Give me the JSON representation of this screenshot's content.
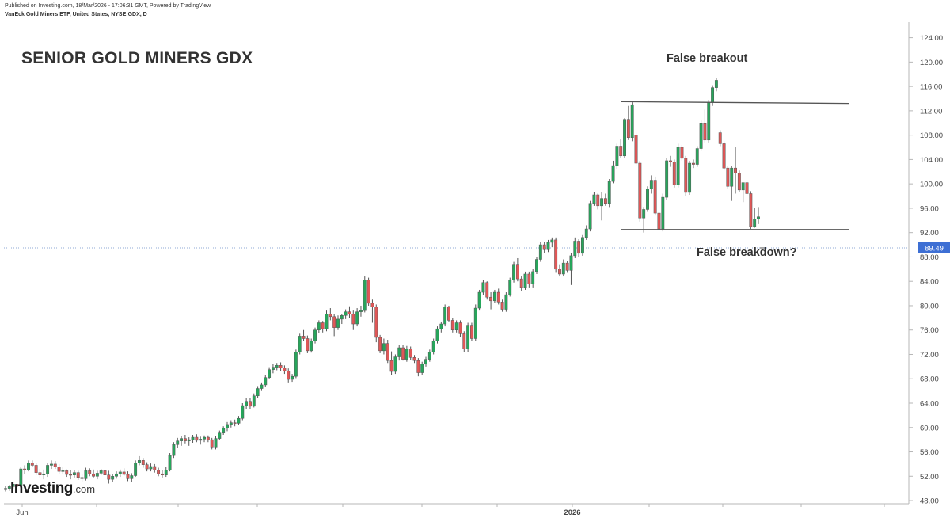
{
  "header": {
    "line1": "Published on Investing.com, 18/Mar/2026 - 17:06:31 GMT, Powered by TradingView",
    "line2": "VanEck Gold Miners ETF, United States, NYSE:GDX, D"
  },
  "annotations": {
    "false_breakout": "False breakout",
    "false_breakdown": "False breakdown?"
  },
  "logo": {
    "brand": "Investing",
    "suffix": ".com"
  },
  "colors": {
    "up": "#26a65b",
    "down": "#e05757",
    "line": "#555555",
    "price_tag": "#3d6fd4"
  },
  "chart_data": {
    "type": "candlestick",
    "title": "SENIOR GOLD MINERS GDX",
    "ylim": [
      46,
      125
    ],
    "y_ticks": [
      "48.00",
      "52.00",
      "56.00",
      "60.00",
      "64.00",
      "68.00",
      "72.00",
      "76.00",
      "80.00",
      "84.00",
      "88.00",
      "92.00",
      "96.00",
      "100.00",
      "104.00",
      "108.00",
      "112.00",
      "116.00",
      "120.00",
      "124.00"
    ],
    "x_labels": [
      "Jun",
      "2026"
    ],
    "last_price": "89.49",
    "grid": false,
    "levels": [
      {
        "name": "resistance",
        "value": 113.3
      },
      {
        "name": "support",
        "value": 92.5
      }
    ],
    "ohlc": [
      [
        49.8,
        50.4,
        49.5,
        50.0
      ],
      [
        50.0,
        50.6,
        49.6,
        50.3
      ],
      [
        50.3,
        51.0,
        50.0,
        50.7
      ],
      [
        50.7,
        51.2,
        50.2,
        50.5
      ],
      [
        50.5,
        53.6,
        50.3,
        53.2
      ],
      [
        53.2,
        53.8,
        52.4,
        53.0
      ],
      [
        53.0,
        54.6,
        52.8,
        54.2
      ],
      [
        54.2,
        54.6,
        53.5,
        53.8
      ],
      [
        53.8,
        54.2,
        52.2,
        52.6
      ],
      [
        52.6,
        53.2,
        51.8,
        52.2
      ],
      [
        52.2,
        53.1,
        51.5,
        52.4
      ],
      [
        52.4,
        54.2,
        51.9,
        53.8
      ],
      [
        53.8,
        54.6,
        53.2,
        54.0
      ],
      [
        54.0,
        54.5,
        53.2,
        53.5
      ],
      [
        53.5,
        54.0,
        52.4,
        52.8
      ],
      [
        52.8,
        53.6,
        52.3,
        52.9
      ],
      [
        52.9,
        53.1,
        51.9,
        52.3
      ],
      [
        52.3,
        53.0,
        51.5,
        52.2
      ],
      [
        52.2,
        53.0,
        51.8,
        52.6
      ],
      [
        52.6,
        52.9,
        51.4,
        51.8
      ],
      [
        51.8,
        52.4,
        51.0,
        51.6
      ],
      [
        51.6,
        53.4,
        51.3,
        52.9
      ],
      [
        52.9,
        53.3,
        52.0,
        52.4
      ],
      [
        52.4,
        53.1,
        51.8,
        52.0
      ],
      [
        52.0,
        52.9,
        51.5,
        52.5
      ],
      [
        52.5,
        53.2,
        52.2,
        52.9
      ],
      [
        52.9,
        53.1,
        51.8,
        52.2
      ],
      [
        52.2,
        52.9,
        50.8,
        51.5
      ],
      [
        51.5,
        52.4,
        51.0,
        52.0
      ],
      [
        52.0,
        52.8,
        51.6,
        52.4
      ],
      [
        52.4,
        53.1,
        51.9,
        52.7
      ],
      [
        52.7,
        53.3,
        52.1,
        52.3
      ],
      [
        52.3,
        52.8,
        51.2,
        51.6
      ],
      [
        51.6,
        52.5,
        51.1,
        52.1
      ],
      [
        52.1,
        54.6,
        51.9,
        54.2
      ],
      [
        54.2,
        55.3,
        53.8,
        54.6
      ],
      [
        54.6,
        55.0,
        53.4,
        53.9
      ],
      [
        53.9,
        54.3,
        52.8,
        53.2
      ],
      [
        53.2,
        54.1,
        52.8,
        53.6
      ],
      [
        53.6,
        54.0,
        52.6,
        53.0
      ],
      [
        53.0,
        53.4,
        52.0,
        52.4
      ],
      [
        52.4,
        53.0,
        51.8,
        52.2
      ],
      [
        52.2,
        53.5,
        51.9,
        53.0
      ],
      [
        53.0,
        55.8,
        52.8,
        55.4
      ],
      [
        55.4,
        57.6,
        55.0,
        57.2
      ],
      [
        57.2,
        58.3,
        56.6,
        57.8
      ],
      [
        57.8,
        58.6,
        57.0,
        58.2
      ],
      [
        58.2,
        58.8,
        57.4,
        57.8
      ],
      [
        57.8,
        58.4,
        57.0,
        58.0
      ],
      [
        58.0,
        58.8,
        57.5,
        58.4
      ],
      [
        58.4,
        58.9,
        57.6,
        57.9
      ],
      [
        57.9,
        58.5,
        57.2,
        58.1
      ],
      [
        58.1,
        58.7,
        57.6,
        58.4
      ],
      [
        58.4,
        58.7,
        57.6,
        58.0
      ],
      [
        58.0,
        58.3,
        56.4,
        56.8
      ],
      [
        56.8,
        58.6,
        56.4,
        58.2
      ],
      [
        58.2,
        59.5,
        57.9,
        59.1
      ],
      [
        59.1,
        60.2,
        58.8,
        59.9
      ],
      [
        59.9,
        60.9,
        59.4,
        60.5
      ],
      [
        60.5,
        61.2,
        60.0,
        60.8
      ],
      [
        60.8,
        61.3,
        60.2,
        60.7
      ],
      [
        60.7,
        61.9,
        60.4,
        61.5
      ],
      [
        61.5,
        64.0,
        61.2,
        63.6
      ],
      [
        63.6,
        64.8,
        63.0,
        64.3
      ],
      [
        64.3,
        64.8,
        63.0,
        63.5
      ],
      [
        63.5,
        65.6,
        63.3,
        65.2
      ],
      [
        65.2,
        66.8,
        64.9,
        66.4
      ],
      [
        66.4,
        67.4,
        66.0,
        67.0
      ],
      [
        67.0,
        68.6,
        66.6,
        68.2
      ],
      [
        68.2,
        69.9,
        67.9,
        69.5
      ],
      [
        69.5,
        70.4,
        68.9,
        69.9
      ],
      [
        69.9,
        70.6,
        69.4,
        70.2
      ],
      [
        70.2,
        70.7,
        69.3,
        69.8
      ],
      [
        69.8,
        70.2,
        68.8,
        69.3
      ],
      [
        69.3,
        69.7,
        67.4,
        67.9
      ],
      [
        67.9,
        68.8,
        67.5,
        68.4
      ],
      [
        68.4,
        72.8,
        68.1,
        72.4
      ],
      [
        72.4,
        75.4,
        72.0,
        75.0
      ],
      [
        75.0,
        76.0,
        74.2,
        74.6
      ],
      [
        74.6,
        75.1,
        72.2,
        72.6
      ],
      [
        72.6,
        74.6,
        72.3,
        74.2
      ],
      [
        74.2,
        76.4,
        73.8,
        76.0
      ],
      [
        76.0,
        77.6,
        75.5,
        77.2
      ],
      [
        77.2,
        77.5,
        75.6,
        76.2
      ],
      [
        76.2,
        79.2,
        75.8,
        78.6
      ],
      [
        78.6,
        79.6,
        77.6,
        78.2
      ],
      [
        78.2,
        78.6,
        75.0,
        76.4
      ],
      [
        76.4,
        78.4,
        76.0,
        77.8
      ],
      [
        77.8,
        78.6,
        77.0,
        78.4
      ],
      [
        78.4,
        79.4,
        77.8,
        79.0
      ],
      [
        79.0,
        79.9,
        78.0,
        78.6
      ],
      [
        78.6,
        79.2,
        76.0,
        77.0
      ],
      [
        77.0,
        79.6,
        76.6,
        79.0
      ],
      [
        79.0,
        80.0,
        78.2,
        79.2
      ],
      [
        79.2,
        84.8,
        78.9,
        84.2
      ],
      [
        84.2,
        84.6,
        80.0,
        80.4
      ],
      [
        80.4,
        81.0,
        77.2,
        79.8
      ],
      [
        79.8,
        80.2,
        74.0,
        74.8
      ],
      [
        74.8,
        75.2,
        72.2,
        72.6
      ],
      [
        72.6,
        74.6,
        72.0,
        73.8
      ],
      [
        73.8,
        74.4,
        70.6,
        71.0
      ],
      [
        71.0,
        72.5,
        68.6,
        69.2
      ],
      [
        69.2,
        72.0,
        68.8,
        71.6
      ],
      [
        71.6,
        73.6,
        71.0,
        73.1
      ],
      [
        73.1,
        73.5,
        71.0,
        71.2
      ],
      [
        71.2,
        73.4,
        70.8,
        72.9
      ],
      [
        72.9,
        73.3,
        71.1,
        71.5
      ],
      [
        71.5,
        71.9,
        70.6,
        71.0
      ],
      [
        71.0,
        71.4,
        68.4,
        69.0
      ],
      [
        69.0,
        70.8,
        68.6,
        70.4
      ],
      [
        70.4,
        71.6,
        70.0,
        71.2
      ],
      [
        71.2,
        72.8,
        70.8,
        72.4
      ],
      [
        72.4,
        74.6,
        72.0,
        74.2
      ],
      [
        74.2,
        76.6,
        73.8,
        76.2
      ],
      [
        76.2,
        77.4,
        75.6,
        77.0
      ],
      [
        77.0,
        80.2,
        76.6,
        79.8
      ],
      [
        79.8,
        80.0,
        77.4,
        77.6
      ],
      [
        77.6,
        78.0,
        75.6,
        76.0
      ],
      [
        76.0,
        77.6,
        75.6,
        77.2
      ],
      [
        77.2,
        77.6,
        74.8,
        75.4
      ],
      [
        75.4,
        75.8,
        72.4,
        72.9
      ],
      [
        72.9,
        77.2,
        72.4,
        76.8
      ],
      [
        76.8,
        77.2,
        74.2,
        74.6
      ],
      [
        74.6,
        80.2,
        74.2,
        79.6
      ],
      [
        79.6,
        82.6,
        79.2,
        82.2
      ],
      [
        82.2,
        84.2,
        81.8,
        83.8
      ],
      [
        83.8,
        84.0,
        81.0,
        81.4
      ],
      [
        81.4,
        82.2,
        79.4,
        80.8
      ],
      [
        80.8,
        82.6,
        80.4,
        82.2
      ],
      [
        82.2,
        82.8,
        80.2,
        80.6
      ],
      [
        80.6,
        81.0,
        79.0,
        79.4
      ],
      [
        79.4,
        82.2,
        79.0,
        81.8
      ],
      [
        81.8,
        84.6,
        81.5,
        84.2
      ],
      [
        84.2,
        87.2,
        83.8,
        86.8
      ],
      [
        86.8,
        87.8,
        84.0,
        84.4
      ],
      [
        84.4,
        84.8,
        82.4,
        83.0
      ],
      [
        83.0,
        85.6,
        82.6,
        85.2
      ],
      [
        85.2,
        85.6,
        83.0,
        83.6
      ],
      [
        83.6,
        86.0,
        83.0,
        85.6
      ],
      [
        85.6,
        88.0,
        85.2,
        87.6
      ],
      [
        87.6,
        90.4,
        87.2,
        90.0
      ],
      [
        90.0,
        90.4,
        88.6,
        89.2
      ],
      [
        89.2,
        90.8,
        88.8,
        90.4
      ],
      [
        90.4,
        91.2,
        89.6,
        90.8
      ],
      [
        90.8,
        91.2,
        85.4,
        86.0
      ],
      [
        86.0,
        86.8,
        84.8,
        85.2
      ],
      [
        85.2,
        87.6,
        84.8,
        87.0
      ],
      [
        87.0,
        87.4,
        85.4,
        85.8
      ],
      [
        85.8,
        88.6,
        83.4,
        88.2
      ],
      [
        88.2,
        91.2,
        87.8,
        90.6
      ],
      [
        90.6,
        90.9,
        88.0,
        88.6
      ],
      [
        88.6,
        91.6,
        88.2,
        91.2
      ],
      [
        91.2,
        93.2,
        90.8,
        92.6
      ],
      [
        92.6,
        97.2,
        92.2,
        96.8
      ],
      [
        96.8,
        98.6,
        96.4,
        98.2
      ],
      [
        98.2,
        98.4,
        95.8,
        96.4
      ],
      [
        96.4,
        98.6,
        94.0,
        97.6
      ],
      [
        97.6,
        98.4,
        96.4,
        96.8
      ],
      [
        96.8,
        100.8,
        96.2,
        100.4
      ],
      [
        100.4,
        103.8,
        100.1,
        103.0
      ],
      [
        103.0,
        106.6,
        102.4,
        106.2
      ],
      [
        106.2,
        107.4,
        104.2,
        104.6
      ],
      [
        104.6,
        110.8,
        104.2,
        110.6
      ],
      [
        110.6,
        112.8,
        107.2,
        107.6
      ],
      [
        107.6,
        113.4,
        107.0,
        113.0
      ],
      [
        108.0,
        108.4,
        103.0,
        103.4
      ],
      [
        103.4,
        103.8,
        93.8,
        94.4
      ],
      [
        94.4,
        96.2,
        92.0,
        95.8
      ],
      [
        95.8,
        99.6,
        95.4,
        99.2
      ],
      [
        99.2,
        101.4,
        98.4,
        100.6
      ],
      [
        100.6,
        101.2,
        94.8,
        95.2
      ],
      [
        95.2,
        95.6,
        92.2,
        92.6
      ],
      [
        92.6,
        98.4,
        92.2,
        97.8
      ],
      [
        97.8,
        104.2,
        97.4,
        103.8
      ],
      [
        103.8,
        104.6,
        102.8,
        103.6
      ],
      [
        103.6,
        104.0,
        99.4,
        99.8
      ],
      [
        99.8,
        106.6,
        99.4,
        106.0
      ],
      [
        106.0,
        106.4,
        103.8,
        104.2
      ],
      [
        104.2,
        104.6,
        98.0,
        98.6
      ],
      [
        98.6,
        103.8,
        98.2,
        103.4
      ],
      [
        103.4,
        104.0,
        102.6,
        103.2
      ],
      [
        103.2,
        106.2,
        102.8,
        105.8
      ],
      [
        105.8,
        110.4,
        105.4,
        110.0
      ],
      [
        110.0,
        112.2,
        106.8,
        107.2
      ],
      [
        107.2,
        113.8,
        106.8,
        113.4
      ],
      [
        113.4,
        116.2,
        112.8,
        115.8
      ],
      [
        115.8,
        117.4,
        115.2,
        117.0
      ],
      [
        108.4,
        108.8,
        106.2,
        106.6
      ],
      [
        106.6,
        107.0,
        102.2,
        102.6
      ],
      [
        102.6,
        103.0,
        99.2,
        99.6
      ],
      [
        99.6,
        103.0,
        97.2,
        102.6
      ],
      [
        102.6,
        106.0,
        98.4,
        101.8
      ],
      [
        101.8,
        102.2,
        98.6,
        99.0
      ],
      [
        99.0,
        99.8,
        97.0,
        100.2
      ],
      [
        100.2,
        100.6,
        98.0,
        98.4
      ],
      [
        98.4,
        98.8,
        92.6,
        93.0
      ],
      [
        93.0,
        96.0,
        92.8,
        94.2
      ],
      [
        94.2,
        96.2,
        93.4,
        94.6
      ]
    ],
    "last_bar": {
      "o": 89.49,
      "h": 90.2,
      "l": 88.6,
      "c": 89.49
    }
  }
}
